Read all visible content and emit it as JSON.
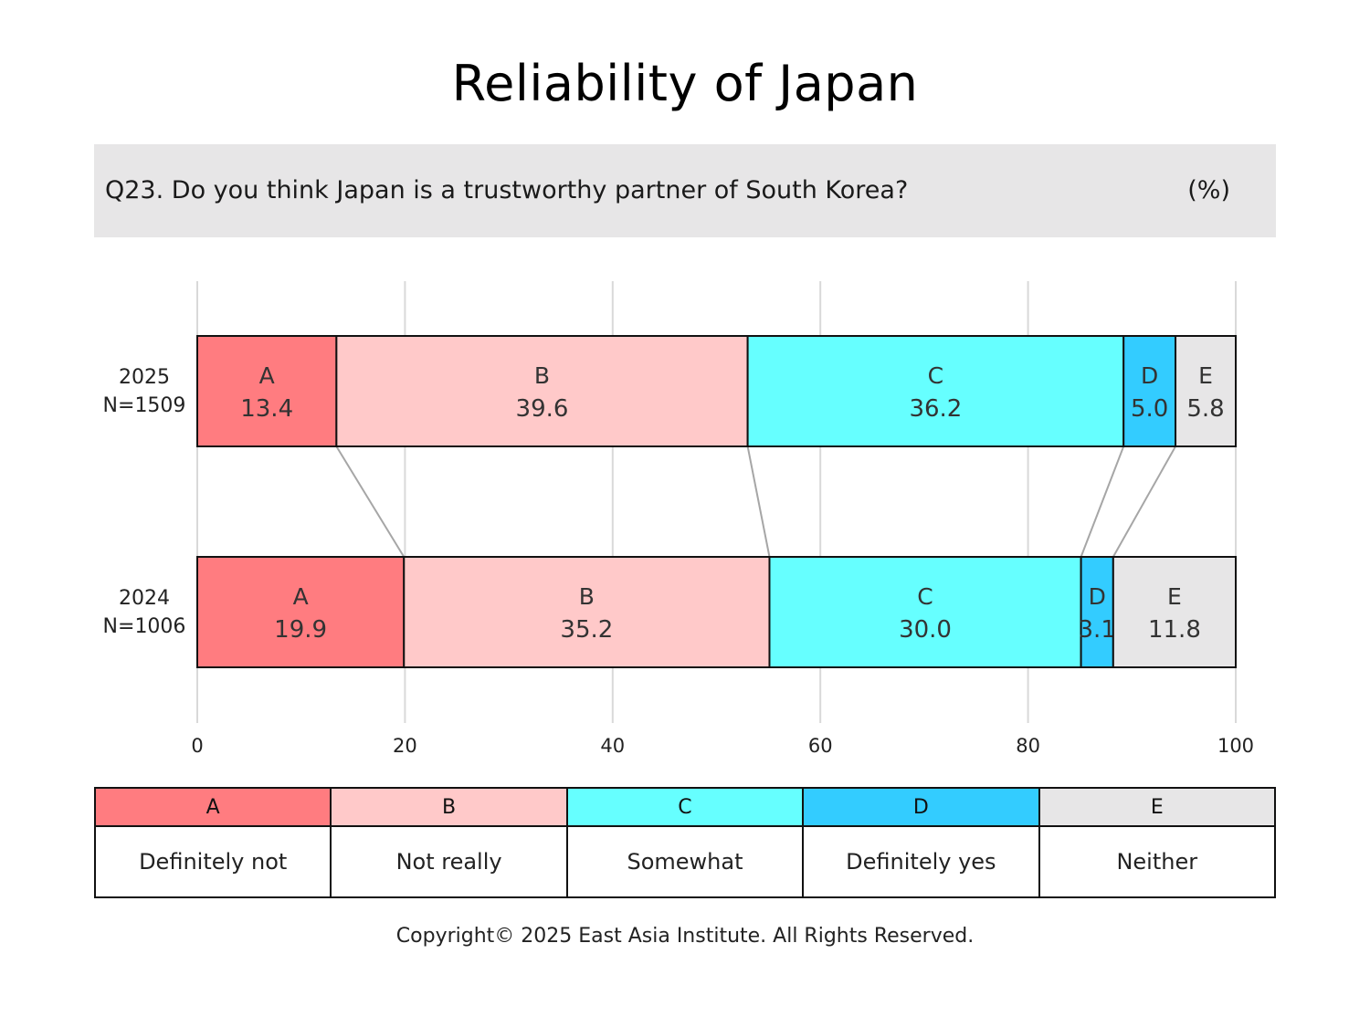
{
  "title": "Reliability of Japan",
  "question": "Q23. Do you think Japan is a trustworthy partner of South Korea?",
  "unit": "(%)",
  "copyright": "Copyright© 2025 East Asia Institute. All Rights Reserved.",
  "categories": [
    {
      "code": "A",
      "label": "Definitely not",
      "color": "#ff7c80"
    },
    {
      "code": "B",
      "label": "Not really",
      "color": "#ffc9c9"
    },
    {
      "code": "C",
      "label": "Somewhat",
      "color": "#66ffff"
    },
    {
      "code": "D",
      "label": "Definitely yes",
      "color": "#33ccff"
    },
    {
      "code": "E",
      "label": "Neither",
      "color": "#e7e6e7"
    }
  ],
  "chart_data": {
    "type": "bar",
    "orientation": "horizontal",
    "stacked": true,
    "categories": [
      "2025",
      "2024"
    ],
    "row_labels": [
      {
        "year": "2025",
        "n": "N=1509"
      },
      {
        "year": "2024",
        "n": "N=1006"
      }
    ],
    "series": [
      {
        "name": "A",
        "values": [
          13.4,
          19.9
        ]
      },
      {
        "name": "B",
        "values": [
          39.6,
          35.2
        ]
      },
      {
        "name": "C",
        "values": [
          36.2,
          30.0
        ]
      },
      {
        "name": "D",
        "values": [
          5.0,
          3.1
        ]
      },
      {
        "name": "E",
        "values": [
          5.8,
          11.8
        ]
      }
    ],
    "value_labels": [
      [
        "13.4",
        "39.6",
        "36.2",
        "5.0",
        "5.8"
      ],
      [
        "19.9",
        "35.2",
        "30.0",
        "3.1",
        "11.8"
      ]
    ],
    "xlim": [
      0,
      100
    ],
    "xticks": [
      "0",
      "20",
      "40",
      "60",
      "80",
      "100"
    ],
    "grid": true,
    "connector_lines": true
  }
}
